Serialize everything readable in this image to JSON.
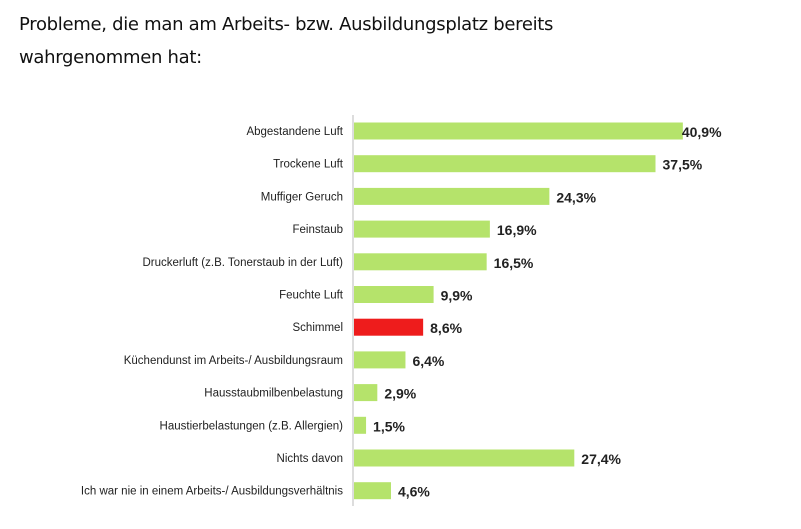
{
  "title_line1": "Probleme, die man am Arbeits- bzw. Ausbildungsplatz bereits",
  "title_line2": "wahrgenommen hat:",
  "chart_data": {
    "type": "bar",
    "orientation": "horizontal",
    "title": "Probleme, die man am Arbeits- bzw. Ausbildungsplatz bereits wahrgenommen hat:",
    "categories": [
      "Abgestandene Luft",
      "Trockene Luft",
      "Muffiger Geruch",
      "Feinstaub",
      "Druckerluft (z.B. Tonerstaub in der Luft)",
      "Feuchte Luft",
      "Schimmel",
      "Küchendunst im Arbeits-/ Ausbildungsraum",
      "Hausstaubmilbenbelastung",
      "Haustierbelastungen (z.B. Allergien)",
      "Nichts davon",
      "Ich war nie in einem Arbeits-/ Ausbildungsverhältnis"
    ],
    "values": [
      40.9,
      37.5,
      24.3,
      16.9,
      16.5,
      9.9,
      8.6,
      6.4,
      2.9,
      1.5,
      27.4,
      4.6
    ],
    "labels": [
      "40,9%",
      "37,5%",
      "24,3%",
      "16,9%",
      "16,5%",
      "9,9%",
      "8,6%",
      "6,4%",
      "2,9%",
      "1,5%",
      "27,4%",
      "4,6%"
    ],
    "colors": [
      "#b5e36b",
      "#b5e36b",
      "#b5e36b",
      "#b5e36b",
      "#b5e36b",
      "#b5e36b",
      "#ee1c1c",
      "#b5e36b",
      "#b5e36b",
      "#b5e36b",
      "#b5e36b",
      "#b5e36b"
    ],
    "highlight": "Schimmel",
    "grid": false
  }
}
